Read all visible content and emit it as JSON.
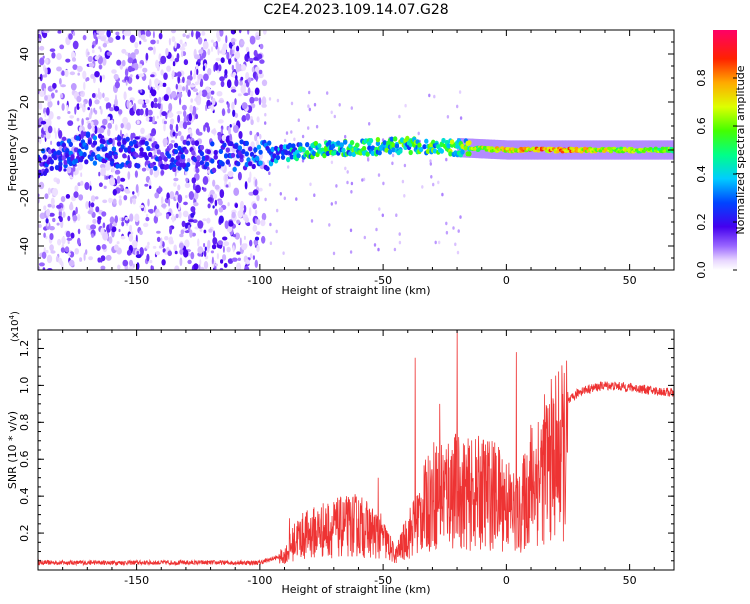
{
  "title": "C2E4.2023.109.14.07.G28",
  "colorbar": {
    "label": "Normalized spectral amplitude",
    "ticks": [
      "0.0",
      "0.2",
      "0.4",
      "0.6",
      "0.8"
    ],
    "tick_values": [
      0.0,
      0.2,
      0.4,
      0.6,
      0.8
    ],
    "range": [
      0,
      1
    ]
  },
  "chart_data": [
    {
      "type": "heatmap",
      "name": "spectrogram",
      "xlabel": "Height of straight line (km)",
      "ylabel": "Frequency (Hz)",
      "xlim": [
        -190,
        68
      ],
      "ylim": [
        -50,
        50
      ],
      "xticks": [
        -150,
        -100,
        -50,
        0,
        50
      ],
      "xtick_labels": [
        "-150",
        "-100",
        "-50",
        "0",
        "50"
      ],
      "yticks": [
        -40,
        -20,
        0,
        20,
        40
      ],
      "ytick_labels": [
        "-40",
        "-20",
        "0",
        "20",
        "40"
      ],
      "description_ridge": [
        {
          "x": -190,
          "y": -6,
          "amp": 0.25
        },
        {
          "x": -170,
          "y": 1,
          "amp": 0.3
        },
        {
          "x": -150,
          "y": -2,
          "amp": 0.25
        },
        {
          "x": -120,
          "y": -3,
          "amp": 0.25
        },
        {
          "x": -95,
          "y": -2,
          "amp": 0.35
        },
        {
          "x": -80,
          "y": 0,
          "amp": 0.5
        },
        {
          "x": -60,
          "y": 1,
          "amp": 0.55
        },
        {
          "x": -40,
          "y": 2,
          "amp": 0.55
        },
        {
          "x": -20,
          "y": 1,
          "amp": 0.6
        },
        {
          "x": 0,
          "y": 0,
          "amp": 0.75
        },
        {
          "x": 20,
          "y": 0,
          "amp": 0.85
        },
        {
          "x": 40,
          "y": 0,
          "amp": 0.7
        },
        {
          "x": 68,
          "y": 0,
          "amp": 0.6
        }
      ]
    },
    {
      "type": "line",
      "name": "snr",
      "xlabel": "Height of straight line (km)",
      "ylabel": "SNR (10 * v/v)",
      "yscale_label": "(x10",
      "yscale_exp": "4",
      "yscale_close": ")",
      "xlim": [
        -190,
        68
      ],
      "ylim": [
        0,
        1.3
      ],
      "xticks": [
        -150,
        -100,
        -50,
        0,
        50
      ],
      "xtick_labels": [
        "-150",
        "-100",
        "-50",
        "0",
        "50"
      ],
      "yticks": [
        0.2,
        0.4,
        0.6,
        0.8,
        1.0,
        1.2
      ],
      "ytick_labels": [
        "0.2",
        "0.4",
        "0.6",
        "0.8",
        "1.0",
        "1.2"
      ],
      "color": "#ee3333",
      "envelope": {
        "x": [
          -190,
          -100,
          -90,
          -85,
          -75,
          -60,
          -50,
          -45,
          -38,
          -30,
          -22,
          -15,
          -8,
          0,
          5,
          10,
          20,
          30,
          40,
          50,
          60,
          68
        ],
        "y": [
          0.04,
          0.04,
          0.08,
          0.22,
          0.28,
          0.32,
          0.22,
          0.08,
          0.3,
          0.55,
          0.6,
          0.55,
          0.58,
          0.5,
          0.38,
          0.65,
          0.85,
          0.97,
          1.0,
          0.99,
          0.97,
          0.96
        ]
      },
      "spikes": [
        {
          "x": -20,
          "y": 1.33
        },
        {
          "x": 4,
          "y": 1.18
        },
        {
          "x": -37,
          "y": 1.15
        },
        {
          "x": -27,
          "y": 0.9
        },
        {
          "x": -52,
          "y": 0.5
        },
        {
          "x": -88,
          "y": 0.28
        }
      ]
    }
  ]
}
